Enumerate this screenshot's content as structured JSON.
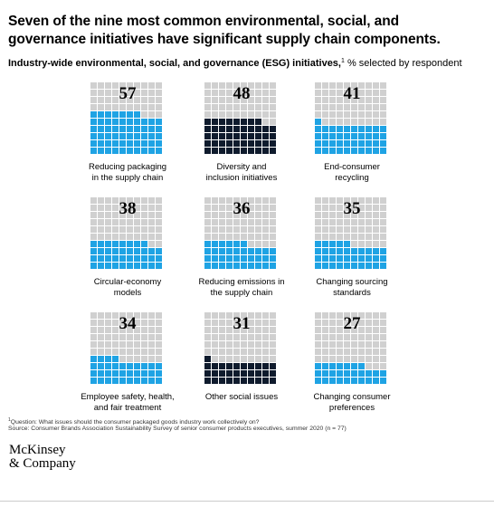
{
  "title": "Seven of the nine most common environmental, social, and governance initiatives have significant supply chain components.",
  "subtitle": {
    "bold": "Industry-wide environmental, social, and governance (ESG) initiatives,",
    "sup": "1",
    "normal": " % selected by respondent"
  },
  "colors": {
    "supply_chain": "#1fa3e4",
    "non_supply_chain": "#0f1b2d",
    "empty": "#d0d0d0"
  },
  "chart_data": {
    "type": "waffle",
    "title": "Seven of the nine most common environmental, social, and governance initiatives have significant supply chain components.",
    "unit": "% selected by respondent",
    "grid": "10x10",
    "items": [
      {
        "value": 57,
        "label": [
          "Reducing packaging",
          "in the supply chain"
        ],
        "supply_chain": true
      },
      {
        "value": 48,
        "label": [
          "Diversity and",
          "inclusion initiatives"
        ],
        "supply_chain": false
      },
      {
        "value": 41,
        "label": [
          "End-consumer",
          "recycling"
        ],
        "supply_chain": true
      },
      {
        "value": 38,
        "label": [
          "Circular-economy",
          "models"
        ],
        "supply_chain": true
      },
      {
        "value": 36,
        "label": [
          "Reducing emissions in",
          "the supply chain"
        ],
        "supply_chain": true
      },
      {
        "value": 35,
        "label": [
          "Changing sourcing",
          "standards"
        ],
        "supply_chain": true
      },
      {
        "value": 34,
        "label": [
          "Employee safety, health,",
          "and fair treatment"
        ],
        "supply_chain": true
      },
      {
        "value": 31,
        "label": [
          "Other social issues"
        ],
        "supply_chain": false
      },
      {
        "value": 27,
        "label": [
          "Changing consumer",
          "preferences"
        ],
        "supply_chain": true
      }
    ]
  },
  "footnotes": {
    "line1_sup": "1",
    "line1": "Question: What issues should the consumer packaged goods industry work collectively on?",
    "line2": "Source: Consumer Brands Association Sustainability Survey of senior consumer products executives, summer 2020 (n = 77)"
  },
  "logo": {
    "line1": "McKinsey",
    "line2": "& Company"
  }
}
